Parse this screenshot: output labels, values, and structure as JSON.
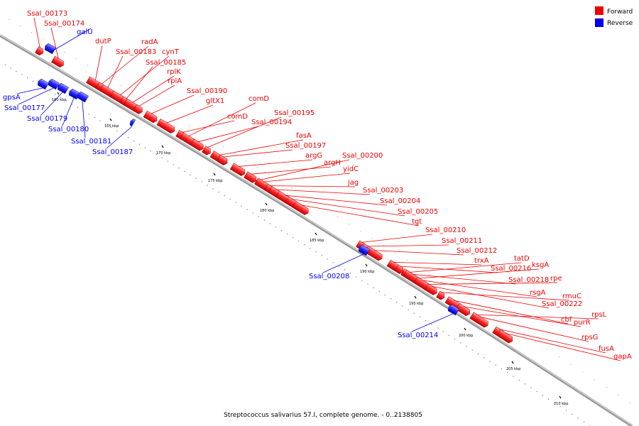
{
  "colors": {
    "forward": "#ee0000",
    "reverse": "#0000ee",
    "backbone": "#808080"
  },
  "legend": [
    {
      "label": "Forward",
      "kind": "forward"
    },
    {
      "label": "Reverse",
      "kind": "reverse"
    }
  ],
  "caption": "Streptococcus salivarius 57.I, complete genome. - 0..2138805",
  "scale_labels": [
    "160 kbp",
    "165 kbp",
    "170 kbp",
    "175 kbp",
    "180 kbp",
    "185 kbp",
    "190 kbp",
    "195 kbp",
    "200 kbp",
    "205 kbp",
    "210 kbp"
  ],
  "forward_genes": [
    "Ssal_00173",
    "Ssal_00174",
    "dutP",
    "radA",
    "Ssal_00183",
    "cynT",
    "Ssal_00185",
    "rplK",
    "rplA",
    "Ssal_00190",
    "gltX1",
    "comD",
    "comD",
    "Ssal_00195",
    "Ssal_00194",
    "fasA",
    "Ssal_00197",
    "argG",
    "Ssal_00200",
    "argH",
    "yidC",
    "jag",
    "Ssal_00203",
    "Ssal_00204",
    "Ssal_00205",
    "tgt",
    "Ssal_00210",
    "Ssal_00211",
    "Ssal_00212",
    "trxA",
    "tatD",
    "Ssal_00216",
    "ksgA",
    "Ssal_00218",
    "rpe",
    "rsgA",
    "rmuC",
    "Ssal_00222",
    "cbf",
    "rpsL",
    "purR",
    "rpsG",
    "fusA",
    "gapA"
  ],
  "reverse_genes": [
    "galU",
    "gpsA",
    "Ssal_00177",
    "Ssal_00179",
    "Ssal_00180",
    "Ssal_00181",
    "Ssal_00187",
    "Ssal_00208",
    "Ssal_00214"
  ]
}
